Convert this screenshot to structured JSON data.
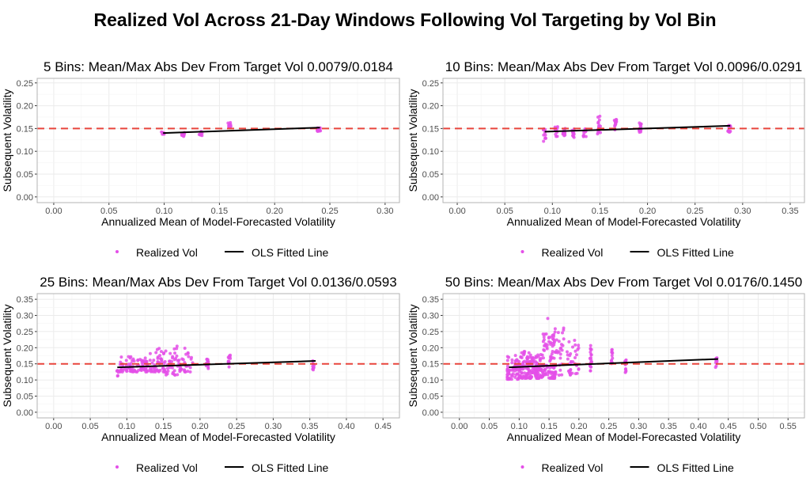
{
  "title": "Realized Vol Across 21-Day Windows Following Vol Targeting by Vol Bin",
  "chart_data": [
    {
      "type": "scatter",
      "title": "5 Bins: Mean/Max Abs Dev From Target Vol 0.0079/0.0184",
      "xlabel": "Annualized Mean of Model-Forecasted Volatility",
      "ylabel": "Subsequent Volatility",
      "xlim": [
        -0.015,
        0.313
      ],
      "ylim": [
        -0.0125,
        0.26
      ],
      "xticks": [
        "0.00",
        "0.05",
        "0.10",
        "0.15",
        "0.20",
        "0.25",
        "0.30"
      ],
      "yticks": [
        "0.00",
        "0.05",
        "0.10",
        "0.15",
        "0.20",
        "0.25"
      ],
      "target_vol": 0.15,
      "ols": {
        "x": [
          0.099,
          0.241
        ],
        "y": [
          0.14,
          0.152
        ]
      },
      "clusters": [
        [
          0.099,
          0.136,
          0.143,
          8
        ],
        [
          0.117,
          0.132,
          0.142,
          10
        ],
        [
          0.133,
          0.134,
          0.144,
          10
        ],
        [
          0.159,
          0.148,
          0.165,
          14
        ],
        [
          0.24,
          0.143,
          0.152,
          10
        ]
      ],
      "legend": [
        "Realized Vol",
        "OLS Fitted Line"
      ]
    },
    {
      "type": "scatter",
      "title": "10 Bins: Mean/Max Abs Dev From Target Vol 0.0096/0.0291",
      "xlabel": "Annualized Mean of Model-Forecasted Volatility",
      "ylabel": "Subsequent Volatility",
      "xlim": [
        -0.015,
        0.365
      ],
      "ylim": [
        -0.0125,
        0.26
      ],
      "xticks": [
        "0.00",
        "0.05",
        "0.10",
        "0.15",
        "0.20",
        "0.25",
        "0.30",
        "0.35"
      ],
      "yticks": [
        "0.00",
        "0.05",
        "0.10",
        "0.15",
        "0.20",
        "0.25"
      ],
      "target_vol": 0.15,
      "ols": {
        "x": [
          0.092,
          0.287
        ],
        "y": [
          0.143,
          0.156
        ]
      },
      "clusters": [
        [
          0.092,
          0.122,
          0.15,
          12
        ],
        [
          0.104,
          0.132,
          0.155,
          12
        ],
        [
          0.112,
          0.132,
          0.15,
          12
        ],
        [
          0.122,
          0.13,
          0.15,
          12
        ],
        [
          0.134,
          0.132,
          0.15,
          12
        ],
        [
          0.149,
          0.138,
          0.178,
          14
        ],
        [
          0.166,
          0.145,
          0.17,
          14
        ],
        [
          0.192,
          0.14,
          0.165,
          14
        ],
        [
          0.286,
          0.142,
          0.158,
          12
        ]
      ],
      "legend": [
        "Realized Vol",
        "OLS Fitted Line"
      ]
    },
    {
      "type": "scatter",
      "title": "25 Bins: Mean/Max Abs Dev From Target Vol 0.0136/0.0593",
      "xlabel": "Annualized Mean of Model-Forecasted Volatility",
      "ylabel": "Subsequent Volatility",
      "xlim": [
        -0.0225,
        0.4725
      ],
      "ylim": [
        -0.0175,
        0.3675
      ],
      "xticks": [
        "0.00",
        "0.05",
        "0.10",
        "0.15",
        "0.20",
        "0.25",
        "0.30",
        "0.35",
        "0.40",
        "0.45"
      ],
      "yticks": [
        "0.00",
        "0.05",
        "0.10",
        "0.15",
        "0.20",
        "0.25",
        "0.30",
        "0.35"
      ],
      "target_vol": 0.15,
      "ols": {
        "x": [
          0.087,
          0.358
        ],
        "y": [
          0.139,
          0.159
        ]
      },
      "clusters": [
        [
          0.087,
          0.11,
          0.135,
          6
        ],
        [
          0.1,
          0.125,
          0.175,
          40
        ],
        [
          0.12,
          0.125,
          0.17,
          40
        ],
        [
          0.14,
          0.125,
          0.2,
          40
        ],
        [
          0.16,
          0.115,
          0.205,
          40
        ],
        [
          0.18,
          0.125,
          0.2,
          30
        ],
        [
          0.21,
          0.135,
          0.165,
          15
        ],
        [
          0.24,
          0.14,
          0.18,
          12
        ],
        [
          0.355,
          0.13,
          0.16,
          10
        ]
      ],
      "legend": [
        "Realized Vol",
        "OLS Fitted Line"
      ]
    },
    {
      "type": "scatter",
      "title": "50 Bins: Mean/Max Abs Dev From Target Vol 0.0176/0.1450",
      "xlabel": "Annualized Mean of Model-Forecasted Volatility",
      "ylabel": "Subsequent Volatility",
      "xlim": [
        -0.0275,
        0.5775
      ],
      "ylim": [
        -0.0175,
        0.3675
      ],
      "xticks": [
        "0.00",
        "0.05",
        "0.10",
        "0.15",
        "0.20",
        "0.25",
        "0.30",
        "0.35",
        "0.40",
        "0.45",
        "0.50",
        "0.55"
      ],
      "yticks": [
        "0.00",
        "0.05",
        "0.10",
        "0.15",
        "0.20",
        "0.25",
        "0.30",
        "0.35"
      ],
      "target_vol": 0.15,
      "ols": {
        "x": [
          0.083,
          0.433
        ],
        "y": [
          0.139,
          0.165
        ]
      },
      "clusters": [
        [
          0.09,
          0.102,
          0.18,
          60
        ],
        [
          0.11,
          0.105,
          0.19,
          80
        ],
        [
          0.13,
          0.105,
          0.18,
          80
        ],
        [
          0.15,
          0.105,
          0.25,
          70
        ],
        [
          0.165,
          0.105,
          0.265,
          50
        ],
        [
          0.19,
          0.115,
          0.225,
          35
        ],
        [
          0.22,
          0.125,
          0.21,
          20
        ],
        [
          0.255,
          0.14,
          0.195,
          12
        ],
        [
          0.278,
          0.118,
          0.165,
          12
        ],
        [
          0.43,
          0.13,
          0.172,
          12
        ],
        [
          0.149,
          0.29,
          0.297,
          1
        ]
      ],
      "legend": [
        "Realized Vol",
        "OLS Fitted Line"
      ]
    }
  ],
  "colors": {
    "point": "#e44fe8",
    "ols": "#000000",
    "target": "#e8453c",
    "grid": "#ebebeb",
    "frame": "#b3b3b3"
  }
}
